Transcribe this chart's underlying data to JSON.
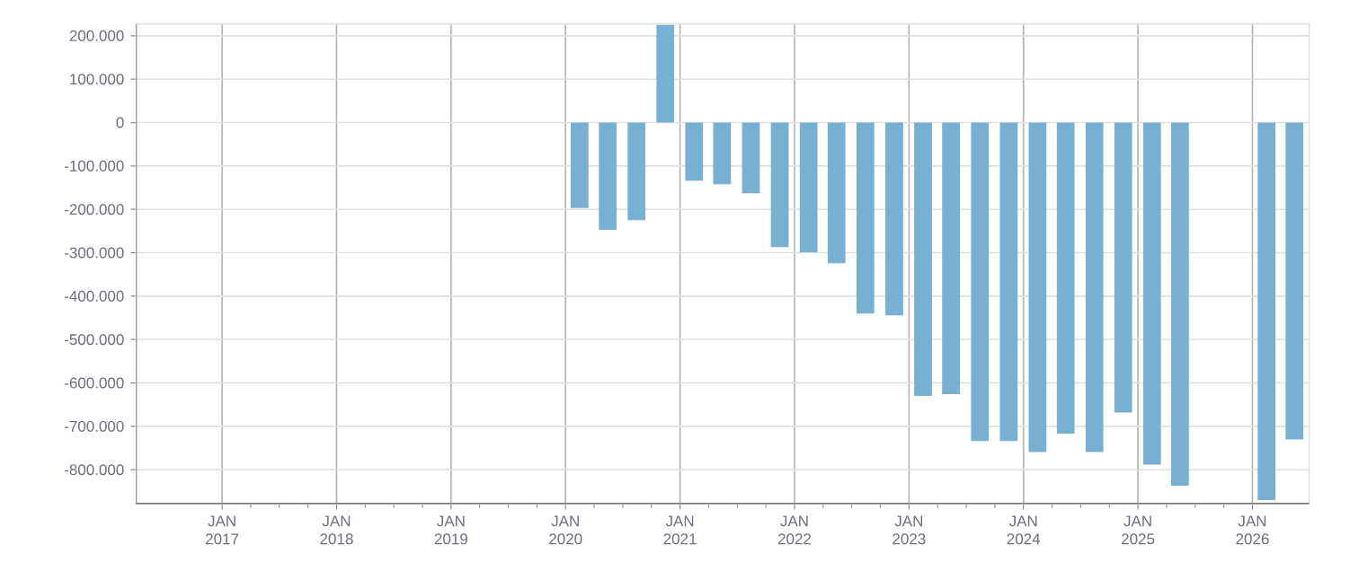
{
  "chart_data": {
    "type": "bar",
    "color": "#78b0d2",
    "grid": true,
    "x": [
      "2020-02-15",
      "2020-05-15",
      "2020-08-15",
      "2020-11-15",
      "2021-02-15",
      "2021-05-15",
      "2021-08-15",
      "2021-11-15",
      "2022-02-15",
      "2022-05-15",
      "2022-08-15",
      "2022-11-15",
      "2023-02-15",
      "2023-05-15",
      "2023-08-15",
      "2023-11-15",
      "2024-02-15",
      "2024-05-15",
      "2024-08-15",
      "2024-11-15",
      "2025-02-15",
      "2025-05-15",
      "2025-08-15",
      "2025-11-15",
      "2026-02-15",
      "2026-05-15"
    ],
    "values": [
      -197000,
      -247000,
      -225000,
      225000,
      -134000,
      -142000,
      -163000,
      -287000,
      -299000,
      -324000,
      -440000,
      -444000,
      -630000,
      -626000,
      -734000,
      -734000,
      -759000,
      -717000,
      -759000,
      -668000,
      -788000,
      -837000,
      null,
      null,
      -870000,
      -730000
    ],
    "xlim": [
      "2016-04-01",
      "2026-07-01"
    ],
    "xticks": [
      {
        "value": "2017-01-01",
        "label": "JAN 2017"
      },
      {
        "value": "2018-01-01",
        "label": "JAN 2018"
      },
      {
        "value": "2019-01-01",
        "label": "JAN 2019"
      },
      {
        "value": "2020-01-01",
        "label": "JAN 2020"
      },
      {
        "value": "2021-01-01",
        "label": "JAN 2021"
      },
      {
        "value": "2022-01-01",
        "label": "JAN 2022"
      },
      {
        "value": "2023-01-01",
        "label": "JAN 2023"
      },
      {
        "value": "2024-01-01",
        "label": "JAN 2024"
      },
      {
        "value": "2025-01-01",
        "label": "JAN 2025"
      },
      {
        "value": "2026-01-01",
        "label": "JAN 2026"
      }
    ],
    "ylim": [
      -879000,
      227500
    ],
    "yticks": [
      {
        "value": 200000,
        "label": "200.000"
      },
      {
        "value": 100000,
        "label": "100.000"
      },
      {
        "value": 0,
        "label": "0"
      },
      {
        "value": -100000,
        "label": "-100.000"
      },
      {
        "value": -200000,
        "label": "-200.000"
      },
      {
        "value": -300000,
        "label": "-300.000"
      },
      {
        "value": -400000,
        "label": "-400.000"
      },
      {
        "value": -500000,
        "label": "-500.000"
      },
      {
        "value": -600000,
        "label": "-600.000"
      },
      {
        "value": -700000,
        "label": "-700.000"
      },
      {
        "value": -800000,
        "label": "-800.000"
      }
    ]
  }
}
